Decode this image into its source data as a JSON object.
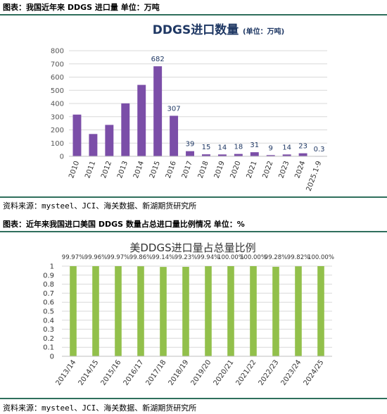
{
  "section1": {
    "caption": "图表：我国近年来 DDGS 进口量 单位：万吨",
    "source": "资料来源：mysteel、JCI、海关数据、新湖期货研究所"
  },
  "section2": {
    "caption": "图表：近年来我国进口美国 DDGS 数量占总进口量比例情况 单位：%",
    "source": "资料来源：mysteel、JCI、海关数据、新湖期货研究所"
  },
  "chart_data": [
    {
      "type": "bar",
      "title": "DDGS进口数量",
      "title_unit": "(单位：万吨)",
      "categories": [
        "2010",
        "2011",
        "2012",
        "2013",
        "2014",
        "2015",
        "2016",
        "2017",
        "2018",
        "2019",
        "2020",
        "2021",
        "2022",
        "2023",
        "2024",
        "2025.1-9"
      ],
      "values": [
        316,
        169,
        238,
        401,
        541,
        682,
        307,
        39,
        15,
        14,
        18,
        31,
        9,
        14,
        23,
        0.3
      ],
      "data_labels": {
        "2015": "682",
        "2016": "307",
        "2017": "39",
        "2018": "15",
        "2019": "14",
        "2020": "18",
        "2021": "31",
        "2022": "9",
        "2023": "14",
        "2024": "23",
        "2025.1-9": "0.3"
      },
      "ylim": [
        0,
        800
      ],
      "yticks": [
        "0",
        "100",
        "200",
        "300",
        "400",
        "500",
        "600",
        "700",
        "800"
      ],
      "grid": true,
      "color": "#7b4ea8"
    },
    {
      "type": "bar",
      "title": "美DDGS进口量占总量比例",
      "categories": [
        "2013/14",
        "2014/15",
        "2015/16",
        "2016/17",
        "2017/18",
        "2018/19",
        "2019/20",
        "2020/21",
        "2021/22",
        "2022/23",
        "2023/24",
        "2024/25"
      ],
      "values": [
        0.9997,
        0.9996,
        0.9997,
        0.9986,
        0.9914,
        0.9923,
        0.9994,
        1.0,
        1.0,
        0.9928,
        0.9982,
        1.0
      ],
      "data_labels": [
        "99.97%",
        "99.96%",
        "99.97%",
        "99.86%",
        "99.14%",
        "99.23%",
        "99.94%",
        "100.00%",
        "100.00%",
        "99.28%",
        "99.82%",
        "100.00%"
      ],
      "ylim": [
        0,
        1
      ],
      "yticks": [
        "0",
        "0.1",
        "0.2",
        "0.3",
        "0.4",
        "0.5",
        "0.6",
        "0.7",
        "0.8",
        "0.9",
        "1"
      ],
      "grid": true,
      "color": "#92c04b"
    }
  ]
}
